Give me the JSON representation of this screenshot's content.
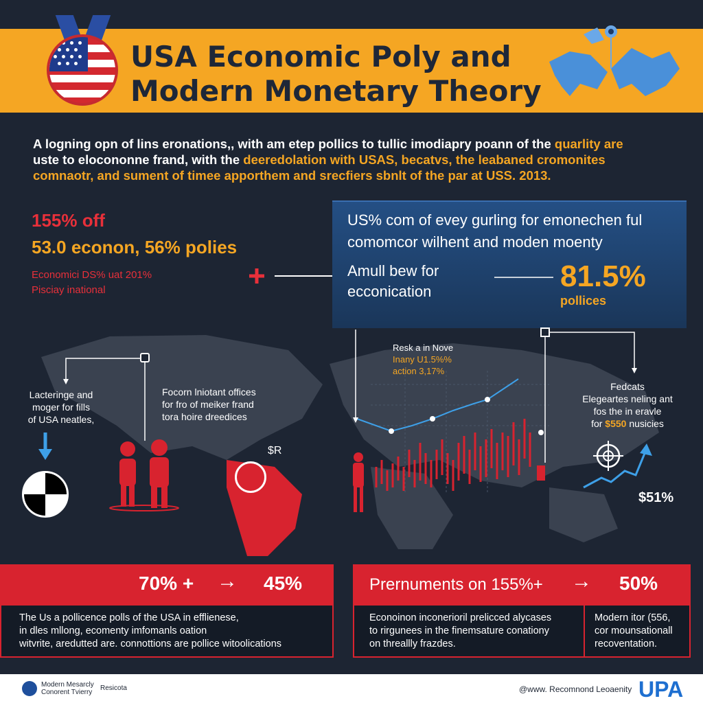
{
  "header": {
    "title_line1": "USA Economic Poly and",
    "title_line2": "Modern Monetary Theory"
  },
  "intro": {
    "line1_white": "A logning opn of lins eronations,, with am etep pollics to tullic imodiapry poann of the ",
    "line1_yellow": "quarlity are",
    "line2_white": "uste to elocononne frand, with the ",
    "line2_yellow": "deeredolation with USAS, becatvs, the leabaned cromonites",
    "line3_yellow": "comnaotr, and sument of timee apporthem and srecfiers sbnlt of the par at USS. 2013."
  },
  "left_stats": {
    "a": "155% off",
    "b": "53.0 econon, 56% polies",
    "c1": "Economici DS% uat 201%",
    "c2": "Pisciay inational"
  },
  "blue_box": {
    "line1": "US% com of evey  gurling for emonechen ful",
    "line2": "comomcor wilhent and  moden moenty",
    "line3a": "Amull bew for",
    "line3b": "ecconication",
    "pct": "81.5%",
    "pct_label": "pollices"
  },
  "notes": {
    "left1": "Lacteringe and",
    "left2": "moger for fills",
    "left3": "of USA neatles,",
    "mid1": "Focorn lniotant offices",
    "mid2": "for fro of meiker frand",
    "mid3": "tora hoire dreedices",
    "chart1": "Resk a in Nove",
    "chart2": "Inany U1.5%%",
    "chart3": "action 3,17%",
    "right1": "Fedcats",
    "right2": "Elegeartes neling ant",
    "right3": "fos the in eravle",
    "right4a": "for ",
    "right4b": "$550",
    "right4c": " nusicies",
    "right_pct": "$51%",
    "map_mark": "$R"
  },
  "bottom_left": {
    "from": "70% +",
    "arrow": "→",
    "to": "45%",
    "p1": "The Us a pollicence polls of the USA in efflienese,",
    "p2": "in dles mllong, ecomenty imfomanls oation",
    "p3": "witvrite, aredutted are. connottions are pollice witoolications"
  },
  "bottom_right": {
    "label": "Prernuments on 155%+",
    "arrow": "→",
    "to": "50%",
    "p1": "Econoinon inconerioril prelicced alycases",
    "p2": "to rirgunees in the finemsature conationy",
    "p3": "on threallly frazdes.",
    "q1": "Modern itor (556,",
    "q2": "cor mounsationall",
    "q3": "recoventation."
  },
  "footer": {
    "logo_l1": "Modern Mesarcly",
    "logo_l2": "Conorent Tvierry",
    "logo_l3": "Resicota",
    "url": "@www. Recomnond Leoaenity",
    "brand": "UPA"
  },
  "colors": {
    "background": "#1d2533",
    "accent_yellow": "#f5a623",
    "accent_red": "#d8232f",
    "accent_blue": "#244f84"
  }
}
